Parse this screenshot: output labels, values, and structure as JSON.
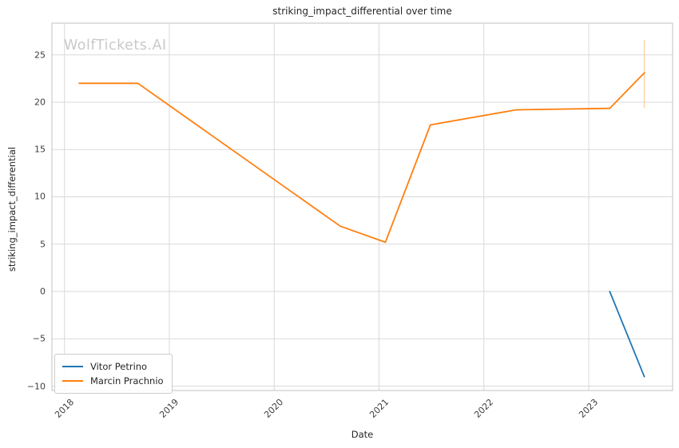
{
  "watermark": {
    "text": "WolfTickets.AI"
  },
  "colors": {
    "series_blue": "#1f77b4",
    "series_orange": "#ff7f0e",
    "error_bar": "#ffd4ab",
    "grid": "#d9d9d9",
    "spine": "#cccccc",
    "title_text": "#262626",
    "tick_text": "#3d3d3d",
    "watermark_text": "#c9c9c9"
  },
  "chart_data": {
    "type": "line",
    "title": "striking_impact_differential over time",
    "xlabel": "Date",
    "ylabel": "striking_impact_differential",
    "watermark": "WolfTickets.AI",
    "grid": true,
    "legend_position": "lower-left",
    "xlim": [
      2017.88,
      2023.8
    ],
    "ylim": [
      -10.46,
      28.35
    ],
    "xticks": [
      2018,
      2019,
      2020,
      2021,
      2022,
      2023
    ],
    "yticks": [
      -10,
      -5,
      0,
      5,
      10,
      15,
      20,
      25
    ],
    "series": [
      {
        "name": "Vitor Petrino",
        "color": "#1f77b4",
        "x": [
          2023.2,
          2023.53
        ],
        "y": [
          0.0,
          -9.0
        ]
      },
      {
        "name": "Marcin Prachnio",
        "color": "#ff7f0e",
        "x": [
          2018.14,
          2018.7,
          2020.63,
          2021.06,
          2021.49,
          2022.31,
          2023.2,
          2023.53
        ],
        "y": [
          22.0,
          22.0,
          6.9,
          5.2,
          17.6,
          19.2,
          19.35,
          23.1
        ],
        "error_bar_last": {
          "x": 2023.53,
          "y_low": 19.4,
          "y_high": 26.6,
          "color": "#ffd4ab"
        }
      }
    ]
  }
}
